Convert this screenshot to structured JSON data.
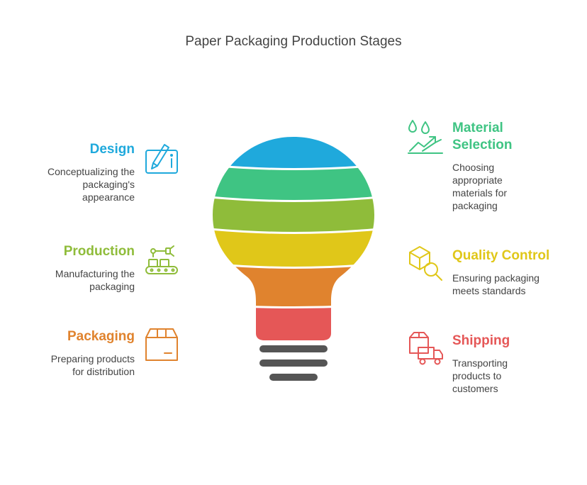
{
  "title": "Paper Packaging Production Stages",
  "stages": [
    {
      "label": "Design",
      "desc": "Conceptualizing the\npackaging's\nappearance",
      "color": "#1fa9dc",
      "icon": "design-tablet-icon"
    },
    {
      "label": "Material\nSelection",
      "desc": "Choosing\nappropriate\nmaterials for\npackaging",
      "color": "#3fc483",
      "icon": "material-drops-icon"
    },
    {
      "label": "Production",
      "desc": "Manufacturing the\npackaging",
      "color": "#8fbc3a",
      "icon": "conveyor-robot-icon"
    },
    {
      "label": "Quality Control",
      "desc": "Ensuring packaging\nmeets standards",
      "color": "#e0c719",
      "icon": "box-magnifier-icon"
    },
    {
      "label": "Packaging",
      "desc": "Preparing products\nfor distribution",
      "color": "#e0832e",
      "icon": "package-box-icon"
    },
    {
      "label": "Shipping",
      "desc": "Transporting\nproducts to\ncustomers",
      "color": "#e55757",
      "icon": "delivery-truck-icon"
    }
  ],
  "bulb_base_color": "#555555"
}
